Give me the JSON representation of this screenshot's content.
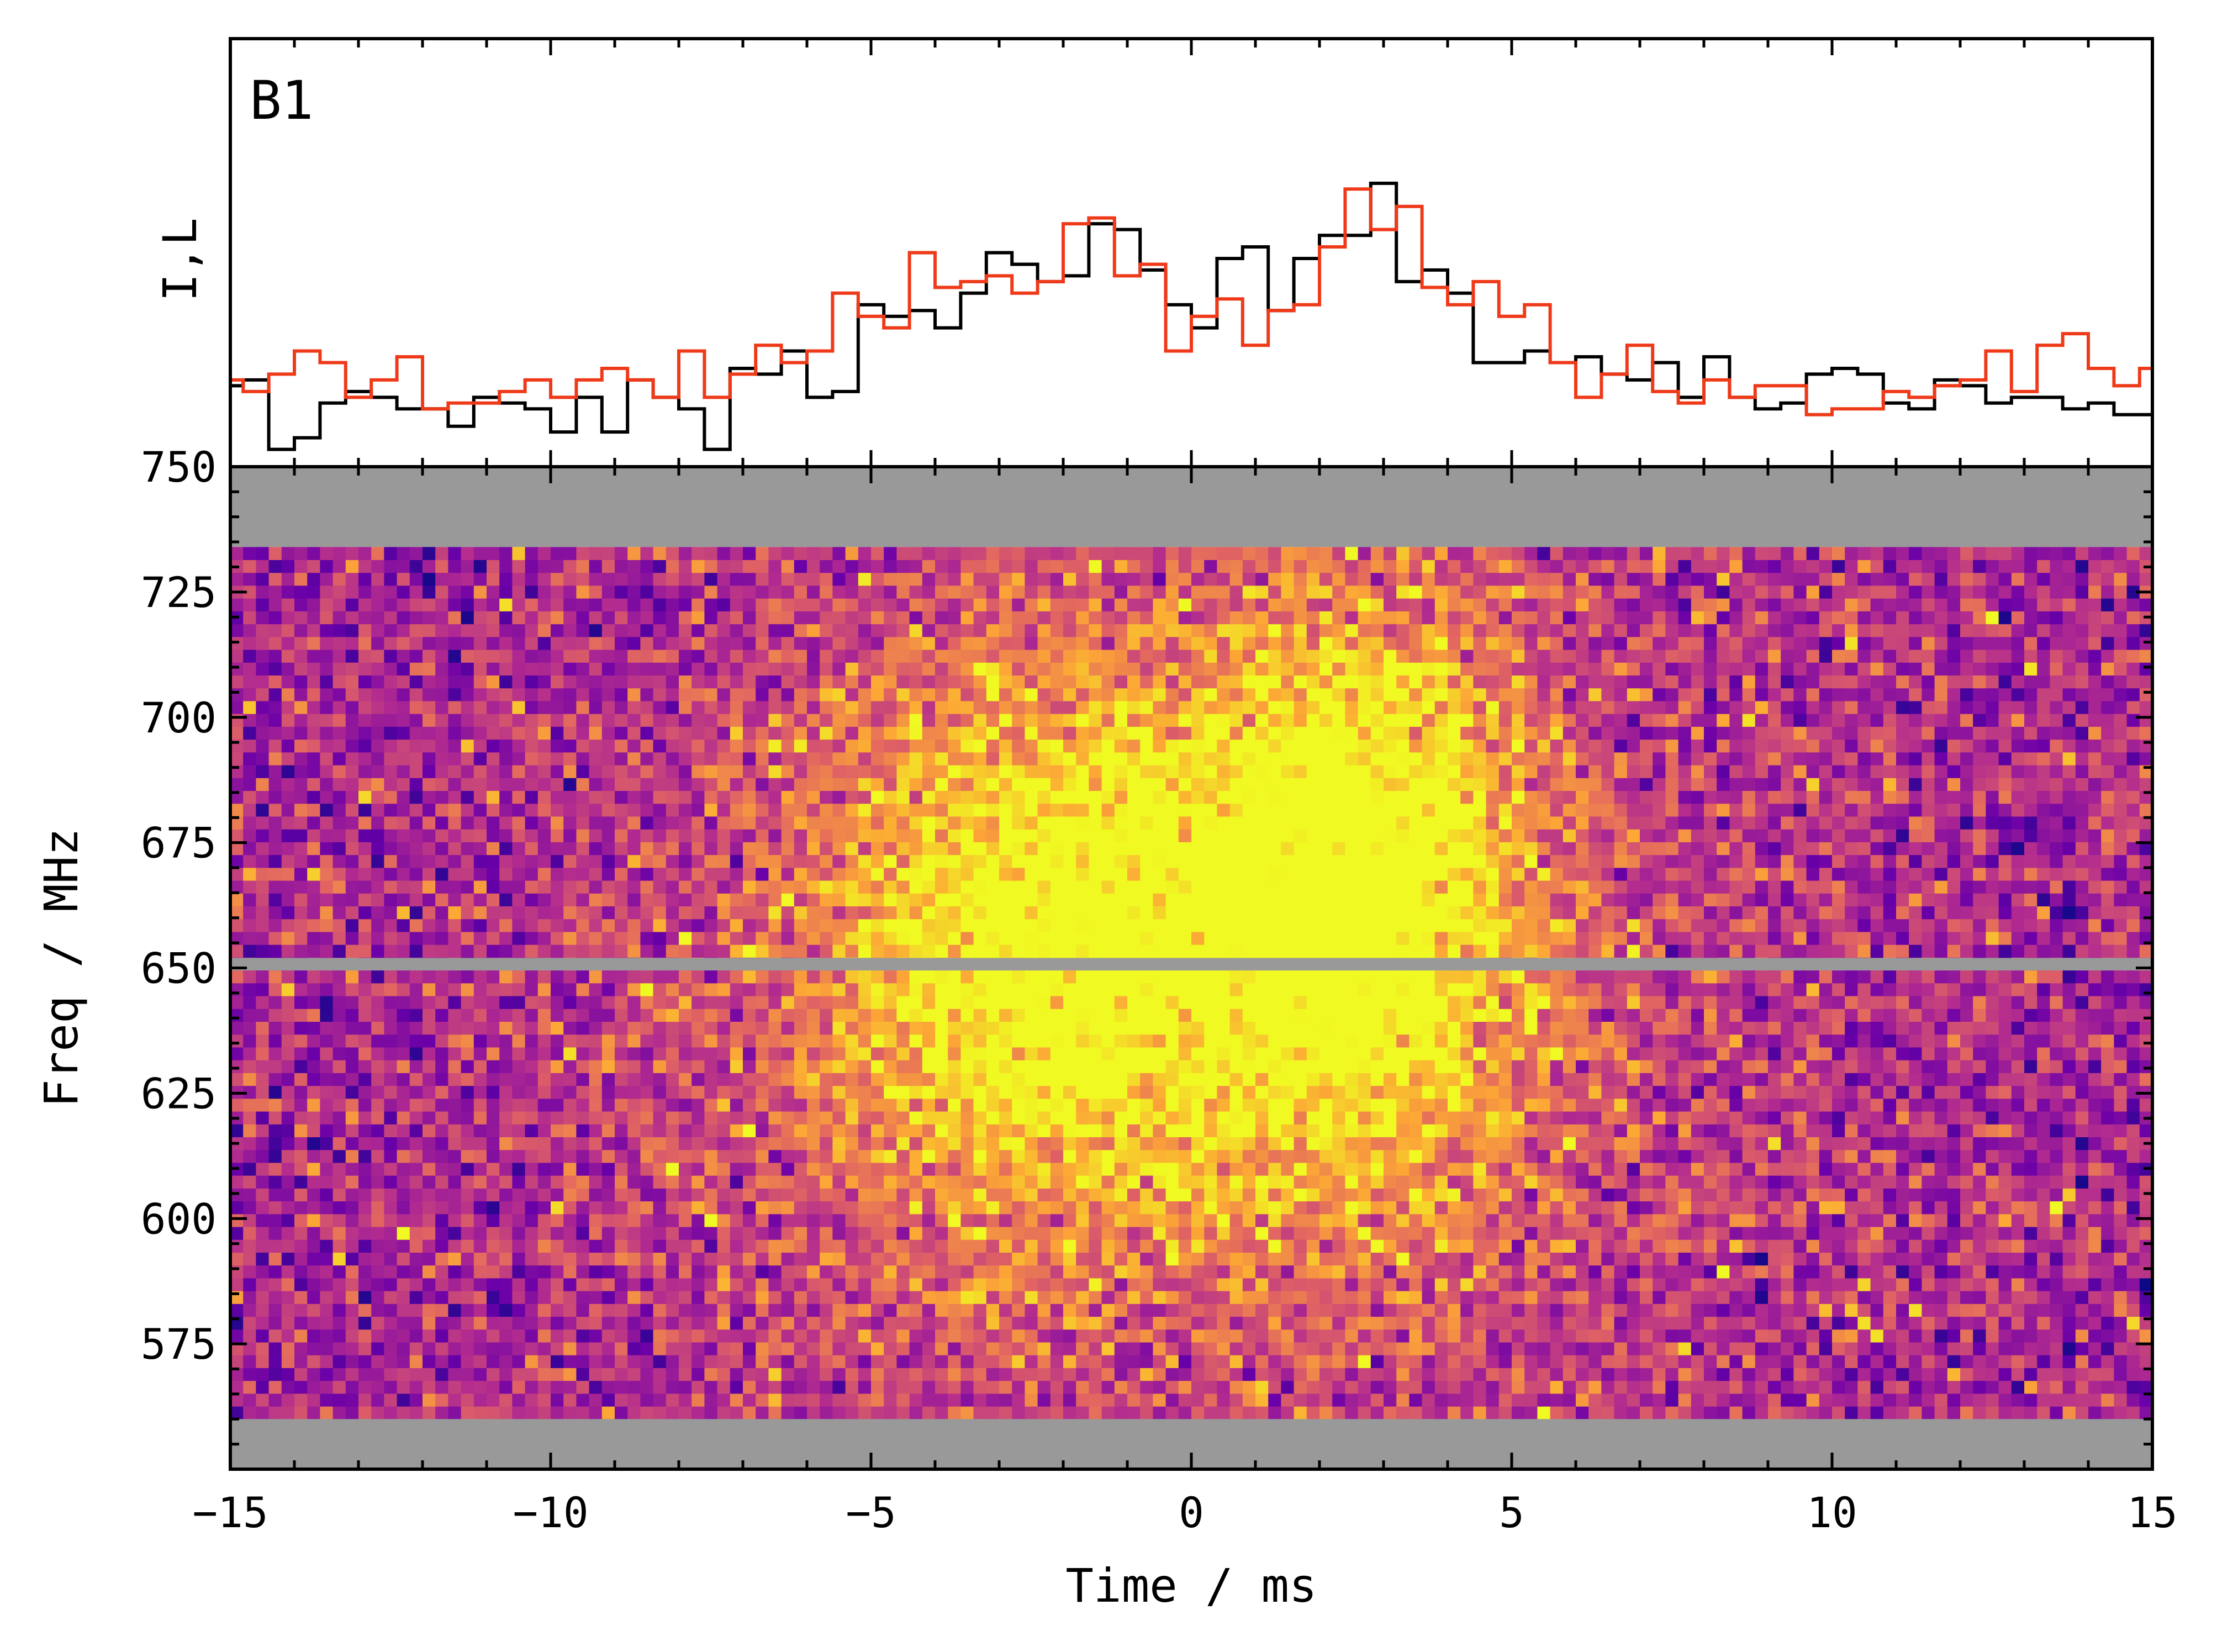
{
  "chart_data": [
    {
      "type": "line",
      "drawstyle": "steps-mid",
      "panel_label": "B1",
      "ylabel": "I,L",
      "xlabel": "",
      "xlim": [
        -15,
        15
      ],
      "ylim": [
        -1.2,
        6.2
      ],
      "grid": false,
      "x": [
        -15.0,
        -14.6,
        -14.2,
        -13.8,
        -13.4,
        -13.0,
        -12.6,
        -12.2,
        -11.8,
        -11.4,
        -11.0,
        -10.6,
        -10.2,
        -9.8,
        -9.4,
        -9.0,
        -8.6,
        -8.2,
        -7.8,
        -7.4,
        -7.0,
        -6.6,
        -6.2,
        -5.8,
        -5.4,
        -5.0,
        -4.6,
        -4.2,
        -3.8,
        -3.4,
        -3.0,
        -2.6,
        -2.2,
        -1.8,
        -1.4,
        -1.0,
        -0.6,
        -0.2,
        0.2,
        0.6,
        1.0,
        1.4,
        1.8,
        2.2,
        2.6,
        3.0,
        3.4,
        3.8,
        4.2,
        4.6,
        5.0,
        5.4,
        5.8,
        6.2,
        6.6,
        7.0,
        7.4,
        7.8,
        8.2,
        8.6,
        9.0,
        9.4,
        9.8,
        10.2,
        10.6,
        11.0,
        11.4,
        11.8,
        12.2,
        12.6,
        13.0,
        13.4,
        13.8,
        14.2,
        14.6,
        15.0
      ],
      "series": [
        {
          "name": "I",
          "color": "#000000",
          "values": [
            0.2,
            0.3,
            -0.9,
            -0.7,
            -0.1,
            0.1,
            0.0,
            -0.2,
            -0.2,
            -0.5,
            0.0,
            -0.1,
            -0.2,
            -0.6,
            0.0,
            -0.6,
            0.3,
            0.0,
            -0.2,
            -0.9,
            0.5,
            0.4,
            0.8,
            0.0,
            0.1,
            1.6,
            1.4,
            1.5,
            1.2,
            1.8,
            2.5,
            2.3,
            2.0,
            2.1,
            3.0,
            2.9,
            2.2,
            1.6,
            1.2,
            2.4,
            2.6,
            1.5,
            2.4,
            2.8,
            2.8,
            3.7,
            2.0,
            2.2,
            1.8,
            0.6,
            0.6,
            0.8,
            0.6,
            0.7,
            0.4,
            0.3,
            0.6,
            0.0,
            0.7,
            0.0,
            -0.2,
            -0.1,
            0.4,
            0.5,
            0.4,
            -0.1,
            -0.2,
            0.3,
            0.2,
            -0.1,
            0.0,
            0.0,
            -0.2,
            -0.1,
            -0.3,
            -0.3
          ]
        },
        {
          "name": "L",
          "color": "#ef3a1a",
          "values": [
            0.3,
            0.1,
            0.4,
            0.8,
            0.6,
            0.0,
            0.3,
            0.7,
            -0.2,
            -0.1,
            -0.1,
            0.1,
            0.3,
            0.0,
            0.3,
            0.5,
            0.3,
            0.0,
            0.8,
            0.0,
            0.4,
            0.9,
            0.6,
            0.8,
            1.8,
            1.4,
            1.2,
            2.5,
            1.9,
            2.0,
            2.1,
            1.8,
            2.0,
            3.0,
            3.1,
            2.1,
            2.3,
            0.8,
            1.4,
            1.7,
            0.9,
            1.5,
            1.6,
            2.6,
            3.6,
            2.9,
            3.3,
            1.9,
            1.6,
            2.0,
            1.4,
            1.6,
            0.6,
            0.0,
            0.4,
            0.9,
            0.1,
            -0.1,
            0.3,
            0.0,
            0.2,
            0.2,
            -0.3,
            -0.2,
            -0.2,
            0.1,
            0.0,
            0.2,
            0.3,
            0.8,
            0.1,
            0.9,
            1.1,
            0.5,
            0.2,
            0.5
          ]
        }
      ]
    },
    {
      "type": "heatmap",
      "xlabel": "Time / ms",
      "ylabel": "Freq / MHz",
      "xlim": [
        -15,
        15
      ],
      "ylim": [
        550,
        750
      ],
      "xticks": [
        -15,
        -10,
        -5,
        0,
        5,
        10,
        15
      ],
      "xtick_labels": [
        "−15",
        "−10",
        "−5",
        "0",
        "5",
        "10",
        "15"
      ],
      "yticks": [
        575,
        600,
        625,
        650,
        675,
        700,
        725,
        750
      ],
      "ytick_labels": [
        "575",
        "600",
        "625",
        "650",
        "675",
        "700",
        "725",
        "750"
      ],
      "colormap": "plasma",
      "colormap_stops": [
        "#0d0887",
        "#6a00a8",
        "#b12a90",
        "#e16462",
        "#fca636",
        "#f0f921"
      ],
      "masked_color": "#999999",
      "data_freq_range": [
        560,
        734
      ],
      "masked_freq_bands": [
        [
          734,
          750
        ],
        [
          550,
          560
        ],
        [
          649.5,
          652
        ]
      ],
      "time_bins": 150,
      "freq_channels": 68,
      "bursts": [
        {
          "time_ms": -2.3,
          "freq_MHz": 655,
          "time_width_ms": 2.5,
          "freq_width_MHz": 40,
          "amplitude": 0.55
        },
        {
          "time_ms": 2.7,
          "freq_MHz": 668,
          "time_width_ms": 1.8,
          "freq_width_MHz": 40,
          "amplitude": 0.65
        },
        {
          "time_ms": 0.0,
          "freq_MHz": 640,
          "time_width_ms": 6.0,
          "freq_width_MHz": 60,
          "amplitude": 0.22
        }
      ]
    }
  ]
}
